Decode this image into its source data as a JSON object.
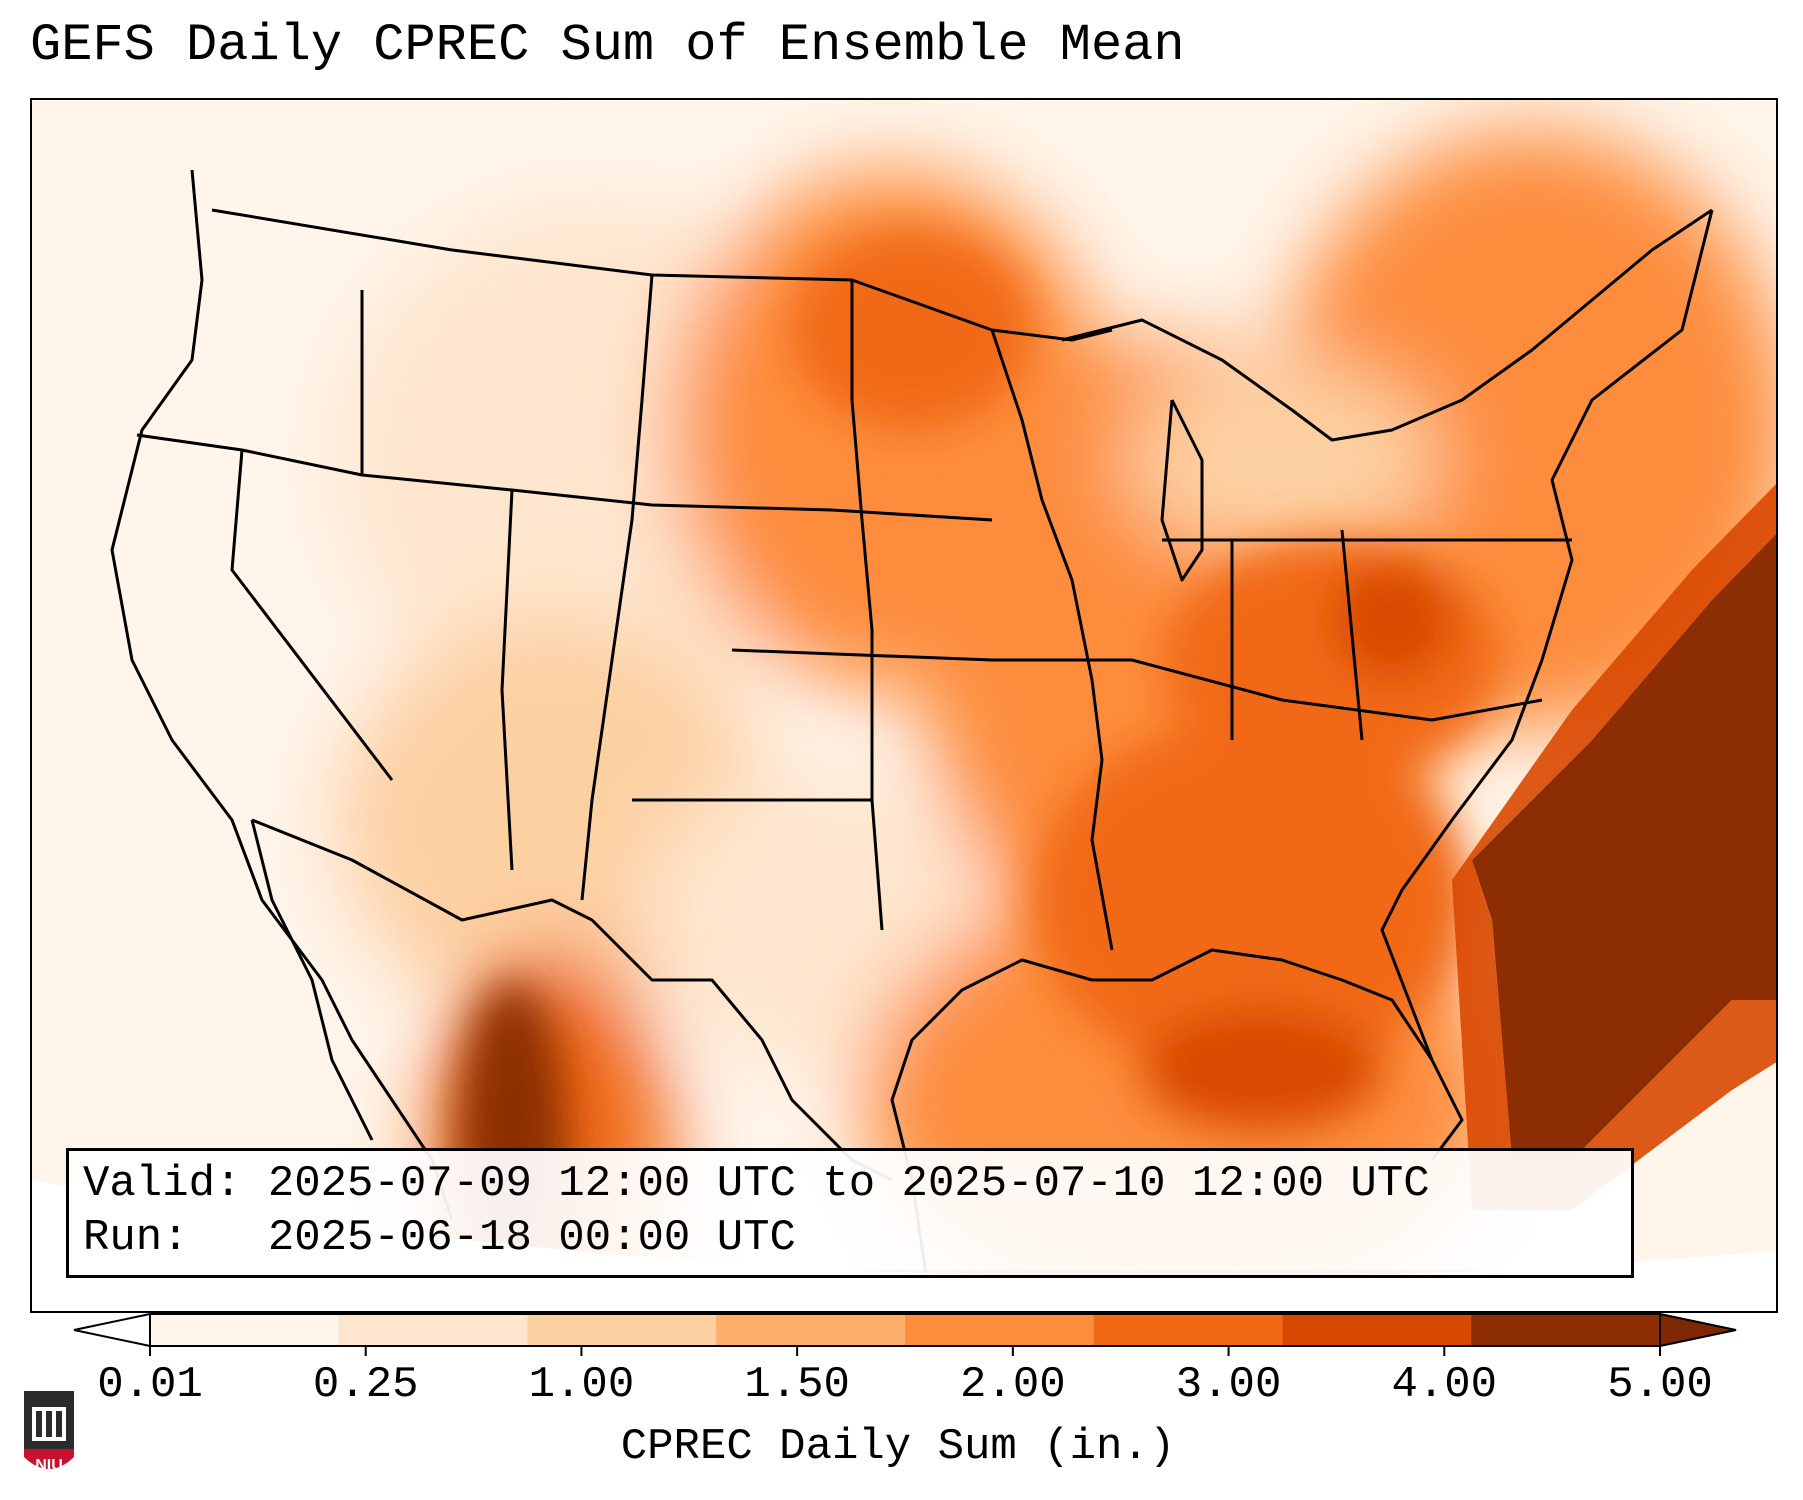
{
  "title": "GEFS Daily CPREC Sum of Ensemble Mean",
  "info": {
    "valid_label": "Valid:",
    "valid_value": "2025-07-09 12:00 UTC to 2025-07-10 12:00 UTC",
    "run_label": "Run:",
    "run_value": "2025-06-18 00:00 UTC"
  },
  "colorbar": {
    "label": "CPREC Daily Sum (in.)",
    "ticks": [
      "0.01",
      "0.25",
      "1.00",
      "1.50",
      "2.00",
      "3.00",
      "4.00",
      "5.00"
    ],
    "colors": [
      "#fff5eb",
      "#fee6ce",
      "#fdd0a2",
      "#fdae6b",
      "#fd8d3c",
      "#f16913",
      "#d94801",
      "#8c2d04"
    ],
    "under_color": "#ffffff",
    "over_color": "#7f2704"
  },
  "logo": {
    "text": "NIU"
  }
}
